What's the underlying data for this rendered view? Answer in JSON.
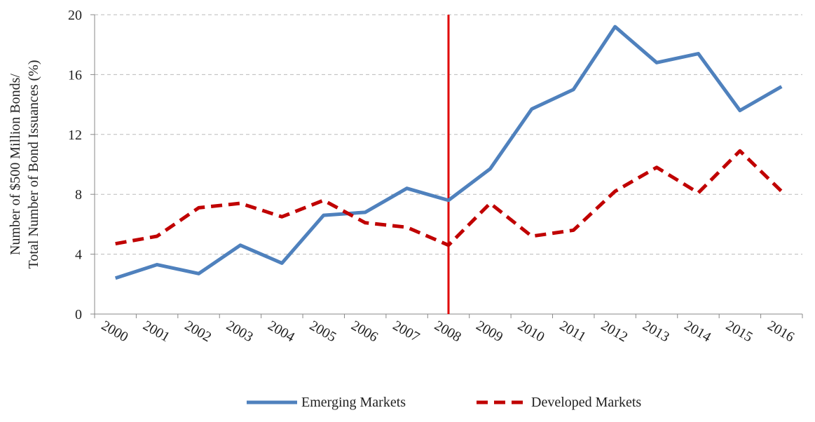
{
  "chart_data": {
    "type": "line",
    "ylabel": [
      "Number of $500 Million Bonds/",
      "Total Number of Bond Issuances (%)"
    ],
    "categories": [
      "2000",
      "2001",
      "2002",
      "2003",
      "2004",
      "2005",
      "2006",
      "2007",
      "2008",
      "2009",
      "2010",
      "2011",
      "2012",
      "2013",
      "2014",
      "2015",
      "2016"
    ],
    "series": [
      {
        "name": "Emerging Markets",
        "color": "#4f81bd",
        "dash": false,
        "values": [
          2.4,
          3.3,
          2.7,
          4.6,
          3.4,
          6.6,
          6.8,
          8.4,
          7.6,
          9.7,
          13.7,
          15.0,
          19.2,
          16.8,
          17.4,
          13.6,
          15.2
        ]
      },
      {
        "name": "Developed Markets",
        "color": "#c00000",
        "dash": true,
        "values": [
          4.7,
          5.2,
          7.1,
          7.4,
          6.5,
          7.6,
          6.1,
          5.8,
          4.6,
          7.4,
          5.2,
          5.6,
          8.2,
          9.8,
          8.1,
          10.9,
          8.2
        ]
      }
    ],
    "vline": {
      "x": "2008",
      "color": "#e00000"
    },
    "ylim": [
      0,
      20
    ],
    "yticks": [
      0,
      4,
      8,
      12,
      16,
      20
    ],
    "grid": true,
    "legend": "bottom"
  }
}
